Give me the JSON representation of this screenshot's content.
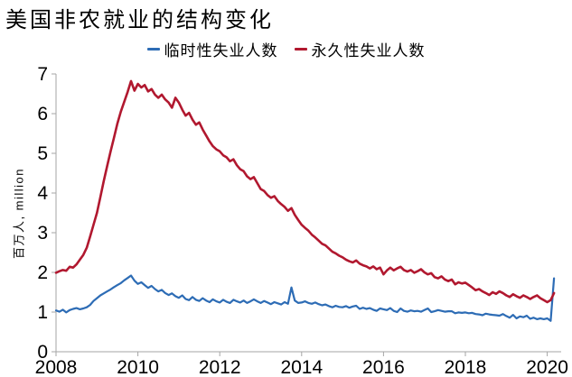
{
  "title": "美国非农就业的结构变化",
  "ylabel": "百万人, million",
  "colors": {
    "temporary": "#2d6cb5",
    "permanent": "#b1182f",
    "axis": "#a6a6a6",
    "text": "#000000"
  },
  "legend": [
    {
      "label": "临时性失业人数",
      "series": "temporary"
    },
    {
      "label": "永久性失业人数",
      "series": "permanent"
    }
  ],
  "chart_data": {
    "type": "line",
    "title": "美国非农就业的结构变化",
    "xlabel": "",
    "ylabel": "百万人, million",
    "xlim": [
      2008,
      2020.34
    ],
    "ylim": [
      0,
      7
    ],
    "x_ticks": [
      2008,
      2010,
      2012,
      2014,
      2016,
      2018,
      2020
    ],
    "x_tick_labels": [
      "2008",
      "2010",
      "2012",
      "2014",
      "2016",
      "2018",
      "2020"
    ],
    "y_ticks": [
      0,
      1,
      2,
      3,
      4,
      5,
      6,
      7
    ],
    "y_tick_labels": [
      "0",
      "1",
      "2",
      "3",
      "4",
      "5",
      "6",
      "7"
    ],
    "grid": false,
    "legend_position": "top-center",
    "x_start_year": 2008,
    "x_frequency": "monthly",
    "x_end": "2020-03",
    "series": [
      {
        "name": "临时性失业人数",
        "color_key": "temporary",
        "values": [
          1.04,
          1.01,
          1.06,
          0.99,
          1.05,
          1.08,
          1.1,
          1.07,
          1.09,
          1.12,
          1.18,
          1.28,
          1.35,
          1.42,
          1.47,
          1.52,
          1.57,
          1.63,
          1.68,
          1.73,
          1.8,
          1.86,
          1.92,
          1.79,
          1.71,
          1.75,
          1.68,
          1.61,
          1.66,
          1.58,
          1.52,
          1.56,
          1.48,
          1.43,
          1.47,
          1.4,
          1.36,
          1.42,
          1.33,
          1.3,
          1.38,
          1.31,
          1.28,
          1.35,
          1.29,
          1.25,
          1.32,
          1.27,
          1.24,
          1.31,
          1.26,
          1.23,
          1.31,
          1.27,
          1.24,
          1.29,
          1.23,
          1.27,
          1.32,
          1.27,
          1.23,
          1.28,
          1.24,
          1.2,
          1.25,
          1.22,
          1.19,
          1.25,
          1.21,
          1.62,
          1.29,
          1.23,
          1.24,
          1.27,
          1.23,
          1.21,
          1.24,
          1.2,
          1.17,
          1.19,
          1.15,
          1.12,
          1.16,
          1.13,
          1.12,
          1.15,
          1.11,
          1.14,
          1.16,
          1.08,
          1.11,
          1.08,
          1.1,
          1.06,
          1.03,
          1.09,
          1.07,
          1.05,
          1.1,
          1.03,
          1.0,
          1.09,
          1.03,
          1.01,
          1.04,
          1.02,
          1.03,
          1.01,
          1.05,
          1.09,
          1.0,
          1.02,
          1.05,
          1.03,
          1.01,
          1.02,
          1.02,
          0.97,
          0.99,
          0.98,
          0.99,
          0.97,
          0.98,
          0.95,
          0.94,
          0.92,
          0.96,
          0.94,
          0.93,
          0.92,
          0.91,
          0.95,
          0.9,
          0.86,
          0.93,
          0.84,
          0.89,
          0.87,
          0.91,
          0.83,
          0.86,
          0.82,
          0.84,
          0.82,
          0.84,
          0.78,
          1.85
        ]
      },
      {
        "name": "永久性失业人数",
        "color_key": "permanent",
        "values": [
          1.99,
          2.03,
          2.06,
          2.04,
          2.14,
          2.12,
          2.2,
          2.32,
          2.44,
          2.62,
          2.9,
          3.2,
          3.5,
          3.9,
          4.3,
          4.68,
          5.05,
          5.4,
          5.75,
          6.05,
          6.3,
          6.55,
          6.82,
          6.58,
          6.75,
          6.66,
          6.72,
          6.56,
          6.62,
          6.48,
          6.4,
          6.48,
          6.36,
          6.28,
          6.15,
          6.4,
          6.28,
          6.1,
          5.95,
          6.02,
          5.85,
          5.72,
          5.78,
          5.6,
          5.45,
          5.3,
          5.18,
          5.1,
          5.05,
          4.95,
          4.9,
          4.8,
          4.85,
          4.7,
          4.6,
          4.55,
          4.42,
          4.35,
          4.4,
          4.25,
          4.1,
          4.05,
          3.95,
          3.88,
          3.92,
          3.8,
          3.72,
          3.65,
          3.55,
          3.62,
          3.45,
          3.32,
          3.2,
          3.12,
          3.05,
          2.95,
          2.88,
          2.8,
          2.72,
          2.68,
          2.6,
          2.52,
          2.48,
          2.42,
          2.38,
          2.32,
          2.28,
          2.25,
          2.3,
          2.22,
          2.18,
          2.15,
          2.1,
          2.15,
          2.08,
          2.12,
          1.95,
          2.05,
          2.12,
          2.05,
          2.1,
          2.14,
          2.06,
          2.02,
          2.06,
          1.99,
          2.03,
          2.08,
          2.0,
          1.95,
          1.98,
          1.88,
          1.85,
          1.9,
          1.82,
          1.78,
          1.82,
          1.7,
          1.75,
          1.72,
          1.74,
          1.68,
          1.62,
          1.55,
          1.58,
          1.52,
          1.48,
          1.43,
          1.5,
          1.46,
          1.52,
          1.48,
          1.42,
          1.38,
          1.45,
          1.4,
          1.36,
          1.42,
          1.38,
          1.33,
          1.38,
          1.42,
          1.35,
          1.3,
          1.25,
          1.3,
          1.48
        ]
      }
    ]
  }
}
